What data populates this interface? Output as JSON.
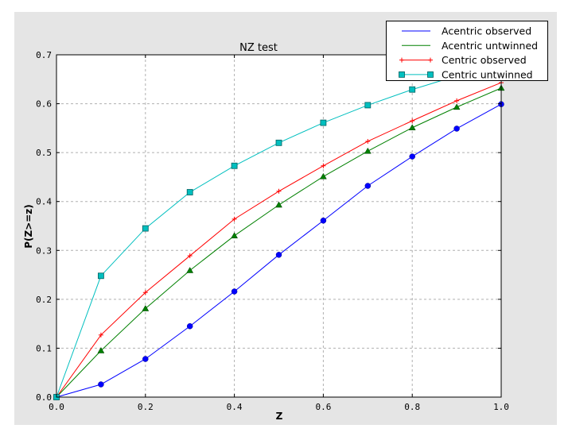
{
  "chart_data": {
    "type": "line",
    "title": "NZ test",
    "xlabel": "Z",
    "ylabel": "P(Z>=z)",
    "xlim": [
      0.0,
      1.0
    ],
    "ylim": [
      0.0,
      0.7
    ],
    "xticks": [
      "0.0",
      "0.2",
      "0.4",
      "0.6",
      "0.8",
      "1.0"
    ],
    "yticks": [
      "0.0",
      "0.1",
      "0.2",
      "0.3",
      "0.4",
      "0.5",
      "0.6",
      "0.7"
    ],
    "grid": true,
    "legend_position": "top-right",
    "x": [
      0.0,
      0.1,
      0.2,
      0.3,
      0.4,
      0.5,
      0.6,
      0.7,
      0.8,
      0.9,
      1.0
    ],
    "series": [
      {
        "name": "Acentric observed",
        "color": "#0000ff",
        "marker": "circle",
        "legend_marker": "none",
        "values": [
          0.0,
          0.026,
          0.078,
          0.145,
          0.216,
          0.291,
          0.361,
          0.432,
          0.492,
          0.549,
          0.599
        ]
      },
      {
        "name": "Acentric untwinned",
        "color": "#008000",
        "marker": "triangle",
        "legend_marker": "none",
        "values": [
          0.0,
          0.095,
          0.181,
          0.259,
          0.33,
          0.393,
          0.451,
          0.503,
          0.551,
          0.593,
          0.632
        ]
      },
      {
        "name": "Centric observed",
        "color": "#ff0000",
        "marker": "plus",
        "legend_marker": "plus",
        "values": [
          0.0,
          0.127,
          0.214,
          0.289,
          0.364,
          0.421,
          0.473,
          0.523,
          0.565,
          0.606,
          0.643
        ]
      },
      {
        "name": "Centric untwinned",
        "color": "#00bfbf",
        "marker": "square",
        "legend_marker": "square",
        "values": [
          0.0,
          0.248,
          0.345,
          0.419,
          0.473,
          0.52,
          0.561,
          0.597,
          0.629,
          0.657,
          0.683
        ]
      }
    ]
  },
  "colors": {
    "background": "#e5e5e5",
    "axes": "#ffffff",
    "grid": "#b0b0b0"
  }
}
